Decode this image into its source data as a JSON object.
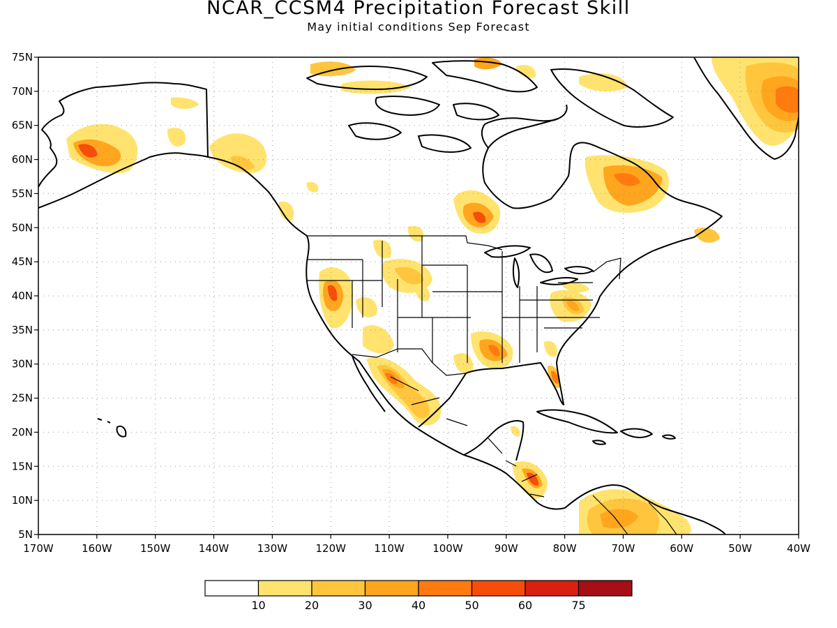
{
  "title": "NCAR_CCSM4 Precipitation Forecast Skill",
  "subtitle": "May initial conditions  Sep Forecast",
  "map": {
    "lat_ticks": [
      "5N",
      "10N",
      "15N",
      "20N",
      "25N",
      "30N",
      "35N",
      "40N",
      "45N",
      "50N",
      "55N",
      "60N",
      "65N",
      "70N",
      "75N"
    ],
    "lon_ticks": [
      "170W",
      "160W",
      "150W",
      "140W",
      "130W",
      "120W",
      "110W",
      "100W",
      "90W",
      "80W",
      "70W",
      "60W",
      "50W",
      "40W"
    ],
    "lat_range": [
      5,
      75
    ],
    "lon_range": [
      -170,
      -40
    ],
    "grid": "dotted"
  },
  "colorbar": {
    "labels": [
      "10",
      "20",
      "30",
      "40",
      "50",
      "60",
      "75"
    ],
    "colors": [
      "#ffffff",
      "#ffe36e",
      "#ffc53d",
      "#ffa51e",
      "#ff7a0f",
      "#f54d0a",
      "#d92110",
      "#a50f15"
    ]
  },
  "skill_colors": {
    "c10": "#ffe36e",
    "c20": "#ffc53d",
    "c30": "#ffa51e",
    "c40": "#ff7a0f",
    "c50": "#f54d0a"
  }
}
